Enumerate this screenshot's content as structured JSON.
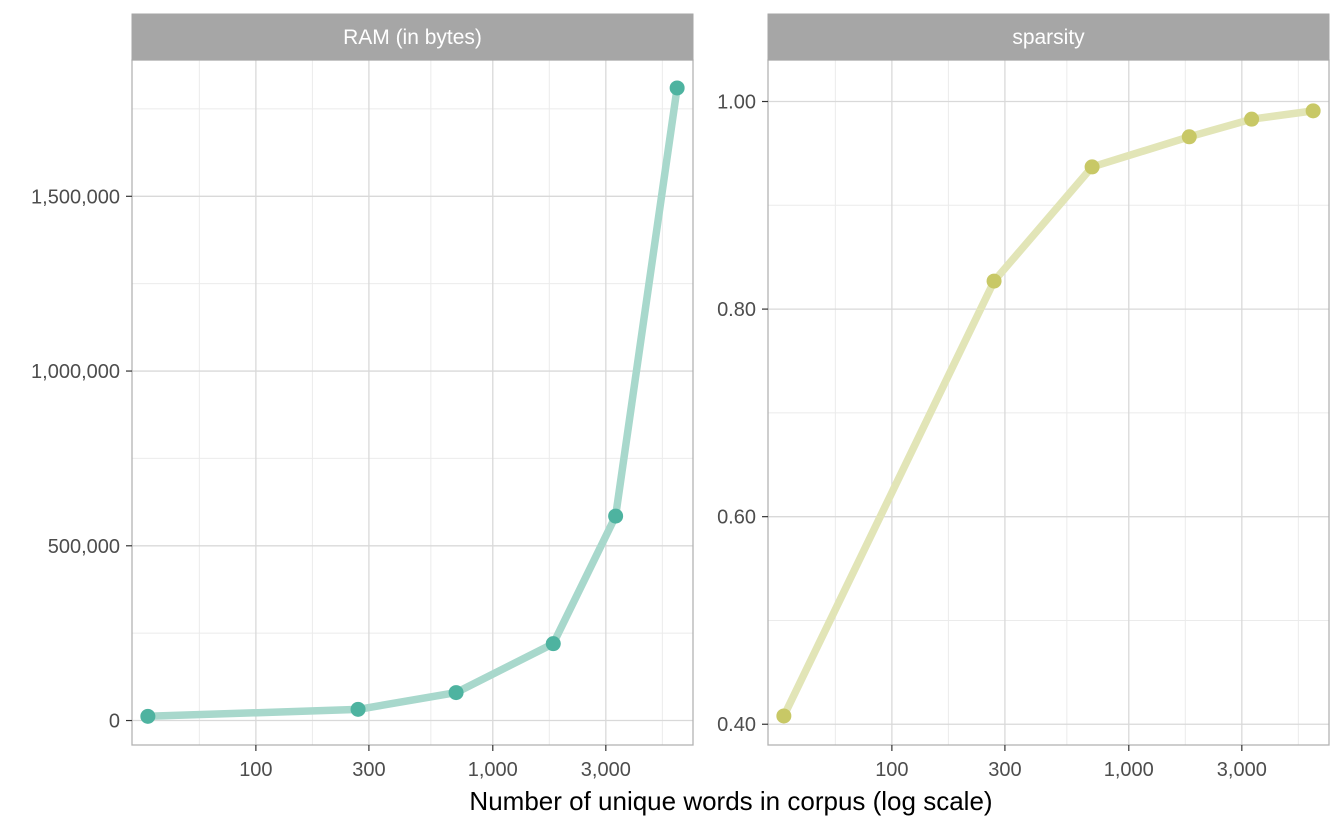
{
  "xlabel": "Number of unique words in corpus (log scale)",
  "chart_data": [
    {
      "type": "line",
      "panel": "RAM (in bytes)",
      "x_scale": "log",
      "xlim": [
        30,
        7000
      ],
      "ylim": [
        -70000,
        1890000
      ],
      "x_ticks": [
        100,
        300,
        1000,
        3000
      ],
      "x_tick_labels": [
        "100",
        "300",
        "1,000",
        "3,000"
      ],
      "y_ticks": [
        0,
        500000,
        1000000,
        1500000
      ],
      "y_tick_labels": [
        "0",
        "500,000",
        "1,000,000",
        "1,500,000"
      ],
      "grid": true,
      "color": "#4eb3a0",
      "line_color": "#a8d8cc",
      "points": [
        {
          "x": 35,
          "y": 12000
        },
        {
          "x": 270,
          "y": 32000
        },
        {
          "x": 700,
          "y": 80000
        },
        {
          "x": 1800,
          "y": 220000
        },
        {
          "x": 3300,
          "y": 585000
        },
        {
          "x": 6000,
          "y": 1810000
        }
      ]
    },
    {
      "type": "line",
      "panel": "sparsity",
      "x_scale": "log",
      "xlim": [
        30,
        7000
      ],
      "ylim": [
        0.38,
        1.04
      ],
      "x_ticks": [
        100,
        300,
        1000,
        3000
      ],
      "x_tick_labels": [
        "100",
        "300",
        "1,000",
        "3,000"
      ],
      "y_ticks": [
        0.4,
        0.6,
        0.8,
        1.0
      ],
      "y_tick_labels": [
        "0.40",
        "0.60",
        "0.80",
        "1.00"
      ],
      "grid": true,
      "color": "#c8c866",
      "line_color": "#e2e5b7",
      "points": [
        {
          "x": 35,
          "y": 0.408
        },
        {
          "x": 270,
          "y": 0.827
        },
        {
          "x": 700,
          "y": 0.937
        },
        {
          "x": 1800,
          "y": 0.966
        },
        {
          "x": 3300,
          "y": 0.983
        },
        {
          "x": 6000,
          "y": 0.991
        }
      ]
    }
  ]
}
